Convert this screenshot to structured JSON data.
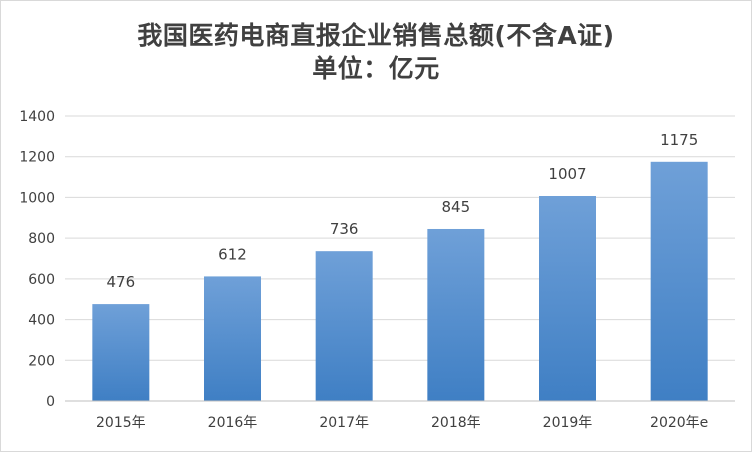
{
  "chart_data": {
    "type": "bar",
    "title": "我国医药电商直报企业销售总额(不含A证)",
    "subtitle": "单位：亿元",
    "categories": [
      "2015年",
      "2016年",
      "2017年",
      "2018年",
      "2019年",
      "2020年e"
    ],
    "values": [
      476,
      612,
      736,
      845,
      1007,
      1175
    ],
    "ylim": [
      0,
      1400
    ],
    "yticks": [
      0,
      200,
      400,
      600,
      800,
      1000,
      1200,
      1400
    ],
    "grid": true,
    "legend": "none",
    "bar_color_top": "#6fa0d8",
    "bar_color_bottom": "#3f7fc4",
    "grid_color": "#d9d9d9"
  }
}
